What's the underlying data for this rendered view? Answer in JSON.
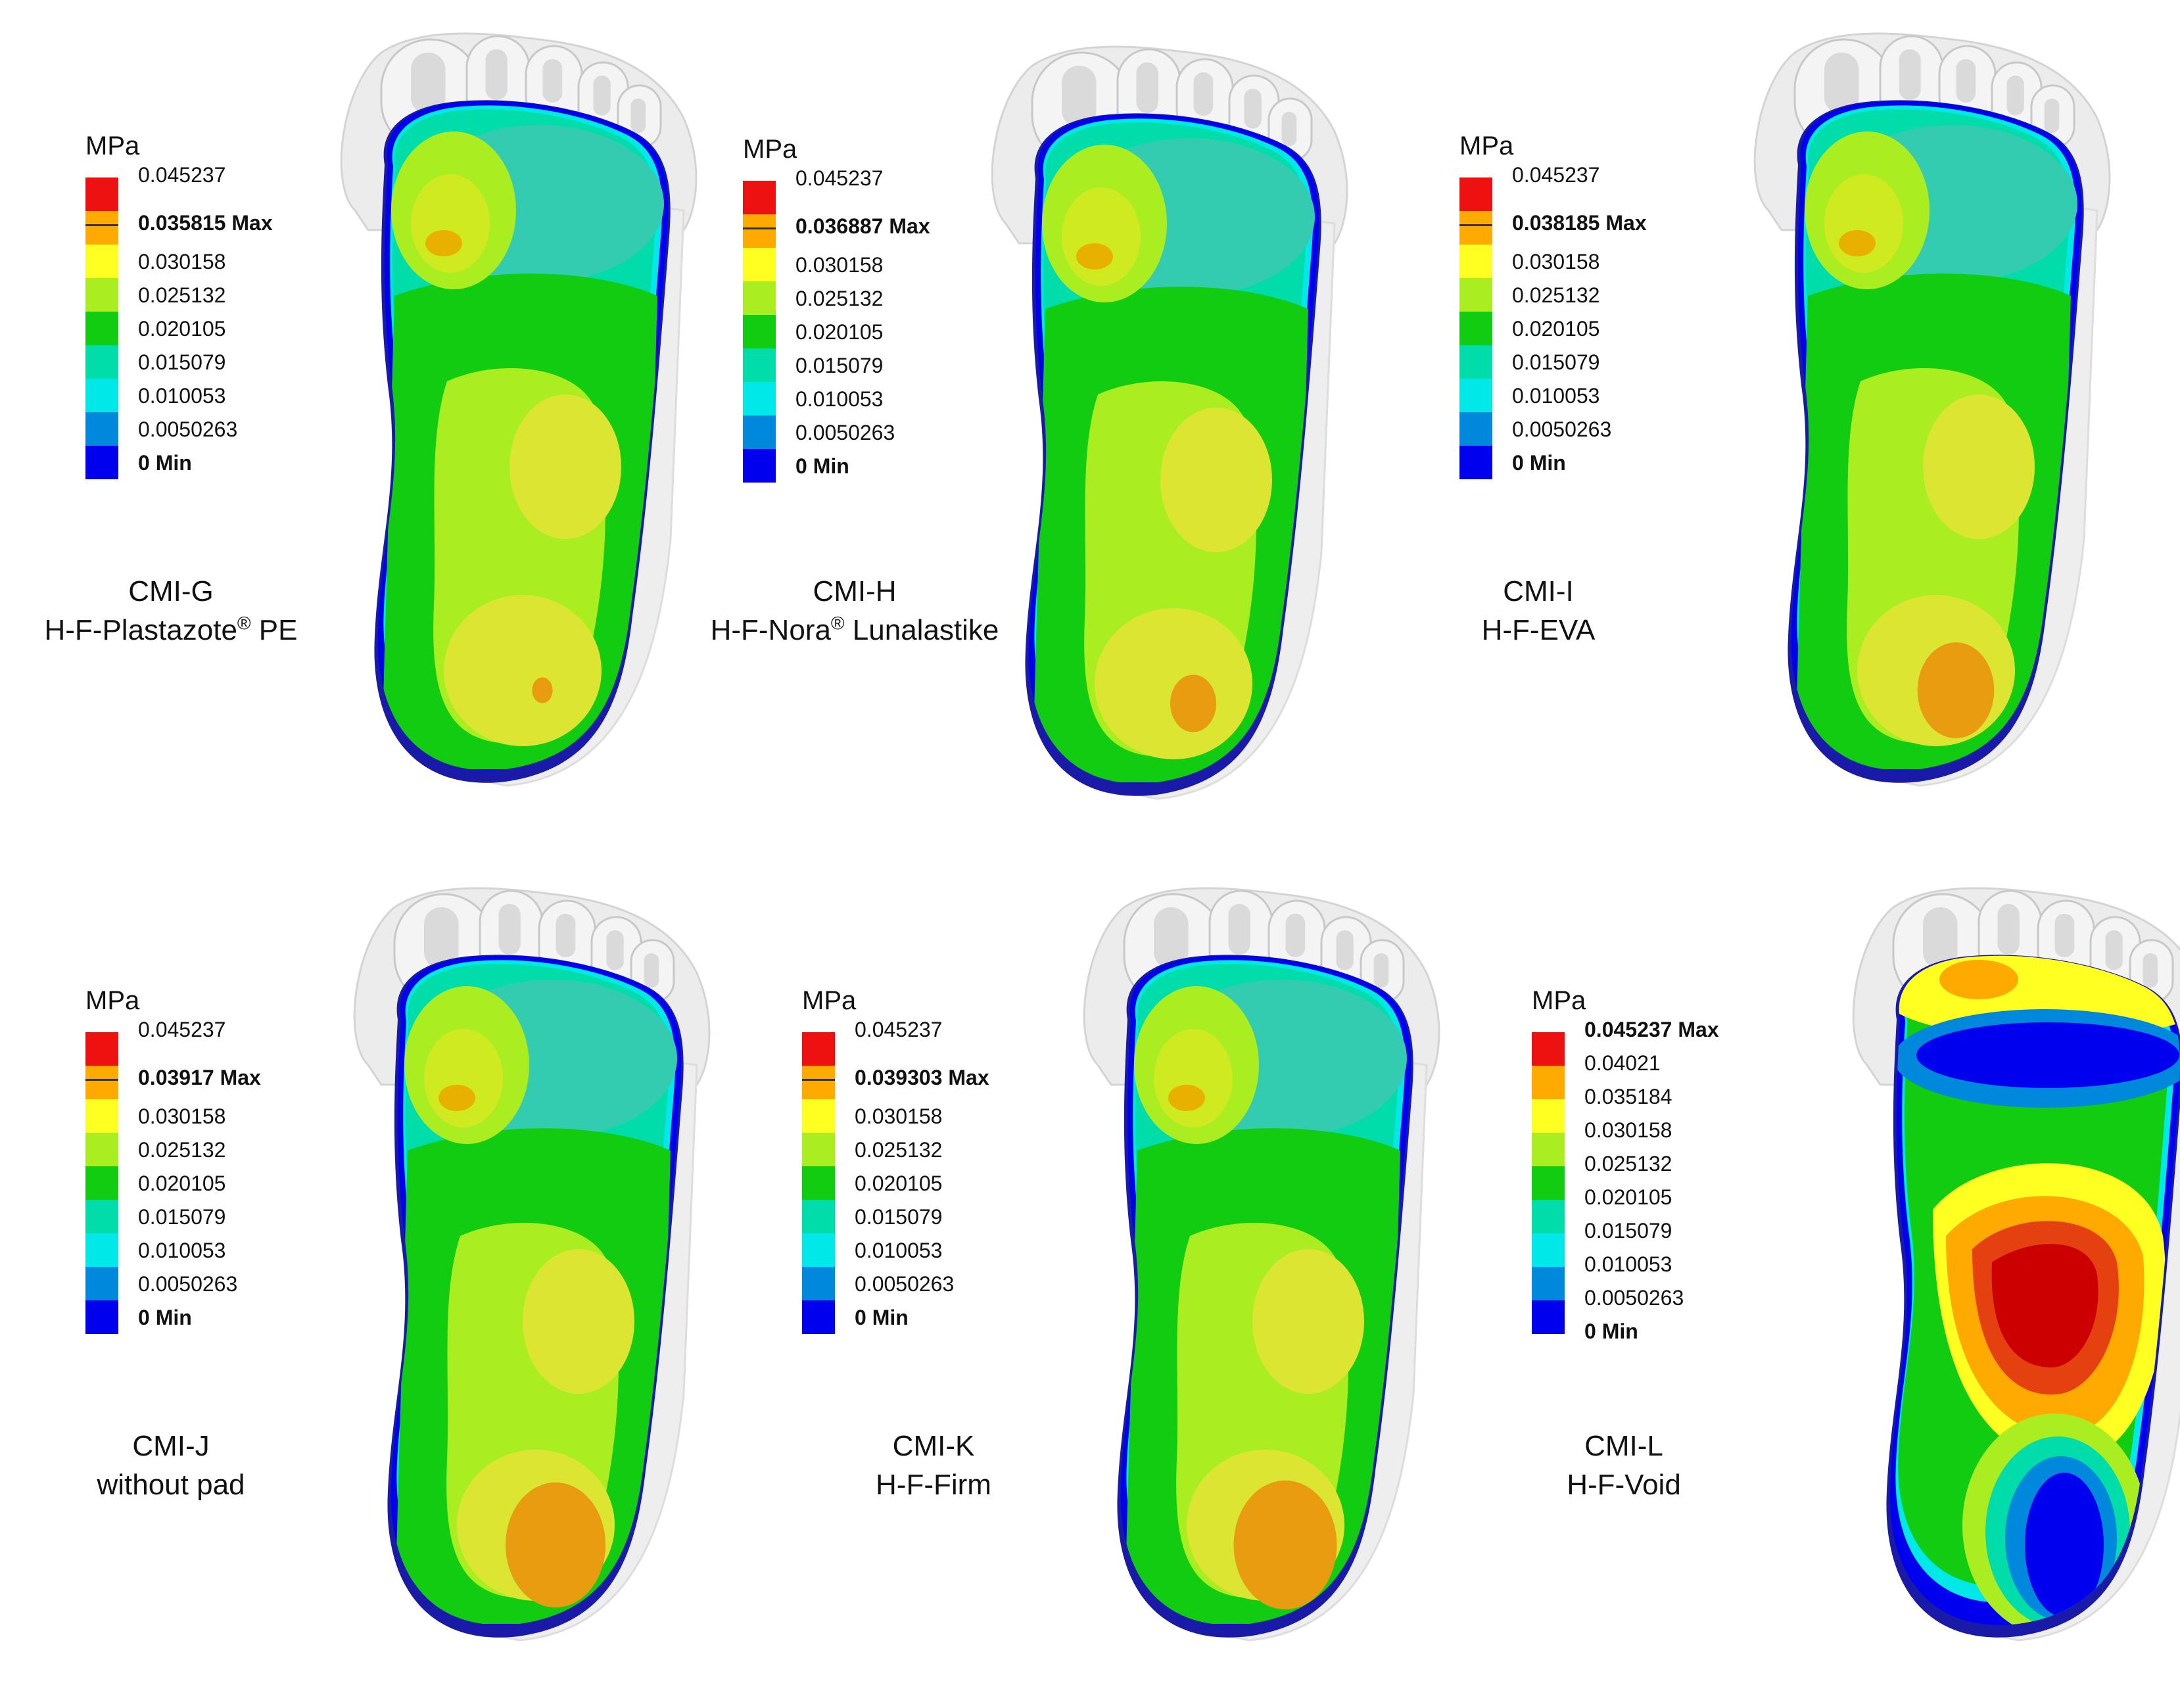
{
  "unit_label": "MPa",
  "palette": [
    "#0000ee",
    "#0088dd",
    "#00e8e8",
    "#00ddaa",
    "#11cc11",
    "#aaee22",
    "#ffff22",
    "#ffaa00",
    "#ee1111"
  ],
  "standard_labels": [
    "0.045237",
    "",
    "0.030158",
    "0.025132",
    "0.020105",
    "0.015079",
    "0.010053",
    "0.0050263",
    "0 Min"
  ],
  "panels": [
    {
      "id": "CMI-G",
      "title": "CMI-G",
      "subtitle_pre": "H-F-Plastazote",
      "subtitle_sup": "®",
      "subtitle_post": " PE",
      "max_label": "0.035815 Max",
      "pattern": "standard",
      "max_value": 0.035815
    },
    {
      "id": "CMI-H",
      "title": "CMI-H",
      "subtitle_pre": "H-F-Nora",
      "subtitle_sup": "®",
      "subtitle_post": " Lunalastike",
      "max_label": "0.036887 Max",
      "pattern": "standard",
      "max_value": 0.036887
    },
    {
      "id": "CMI-I",
      "title": "CMI-I",
      "subtitle_pre": "H-F-EVA",
      "subtitle_sup": "",
      "subtitle_post": "",
      "max_label": "0.038185 Max",
      "pattern": "standard",
      "max_value": 0.038185
    },
    {
      "id": "CMI-J",
      "title": "CMI-J",
      "subtitle_pre": "without pad",
      "subtitle_sup": "",
      "subtitle_post": "",
      "max_label": "0.03917 Max",
      "pattern": "standard",
      "max_value": 0.03917
    },
    {
      "id": "CMI-K",
      "title": "CMI-K",
      "subtitle_pre": "H-F-Firm",
      "subtitle_sup": "",
      "subtitle_post": "",
      "max_label": "0.039303 Max",
      "pattern": "standard",
      "max_value": 0.039303
    },
    {
      "id": "CMI-L",
      "title": "CMI-L",
      "subtitle_pre": "H-F-Void",
      "subtitle_sup": "",
      "subtitle_post": "",
      "max_label": "0.045237 Max",
      "pattern": "void",
      "max_value": 0.045237,
      "labels": [
        "0.045237 Max",
        "0.04021",
        "0.035184",
        "0.030158",
        "0.025132",
        "0.020105",
        "0.015079",
        "0.010053",
        "0.0050263",
        "0 Min"
      ]
    }
  ]
}
